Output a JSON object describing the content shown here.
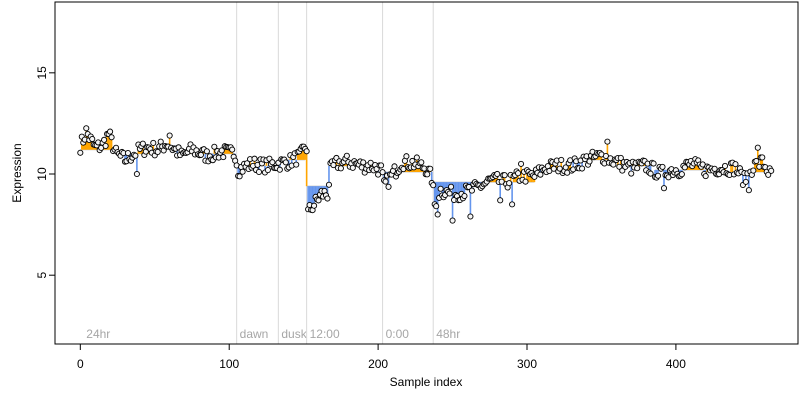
{
  "chart_data": {
    "type": "scatter",
    "title": "",
    "xlabel": "Sample index",
    "ylabel": "Expression",
    "xlim": [
      -17,
      482
    ],
    "ylim": [
      1.6,
      18.5
    ],
    "xticks": [
      0,
      100,
      200,
      300,
      400
    ],
    "yticks": [
      5,
      10,
      15
    ],
    "grid": false,
    "colors": {
      "up": "#ffa500",
      "down": "#6495ed",
      "marker_fill": "#f5f5f5",
      "marker_stroke": "#000000",
      "annotation_line": "#d9d9d9",
      "annotation_text": "#a6a6a6"
    },
    "annotations": [
      {
        "x": 2,
        "label": "24hr",
        "line": false
      },
      {
        "x": 105,
        "label": "dawn",
        "line": true
      },
      {
        "x": 133,
        "label": "dusk",
        "line": true
      },
      {
        "x": 152,
        "label": "12:00",
        "line": true
      },
      {
        "x": 203,
        "label": "0:00",
        "line": true
      },
      {
        "x": 237,
        "label": "48hr",
        "line": true
      }
    ],
    "segments": [
      {
        "x0": 0,
        "x1": 25,
        "level": 11.2
      },
      {
        "x0": 26,
        "x1": 51,
        "level": 11.0
      },
      {
        "x0": 52,
        "x1": 67,
        "level": 11.4
      },
      {
        "x0": 68,
        "x1": 104,
        "level": 11.0
      },
      {
        "x0": 105,
        "x1": 132,
        "level": 10.4
      },
      {
        "x0": 133,
        "x1": 151,
        "level": 10.7
      },
      {
        "x0": 152,
        "x1": 166,
        "level": 9.4
      },
      {
        "x0": 167,
        "x1": 202,
        "level": 10.4
      },
      {
        "x0": 203,
        "x1": 236,
        "level": 10.1
      },
      {
        "x0": 237,
        "x1": 305,
        "level": 9.6
      },
      {
        "x0": 306,
        "x1": 330,
        "level": 10.2
      },
      {
        "x0": 331,
        "x1": 360,
        "level": 10.7
      },
      {
        "x0": 361,
        "x1": 385,
        "level": 10.4
      },
      {
        "x0": 386,
        "x1": 420,
        "level": 10.2
      },
      {
        "x0": 421,
        "x1": 464,
        "level": 10.1
      }
    ],
    "anchors": [
      {
        "x": 0,
        "y": 11.4
      },
      {
        "x": 2,
        "y": 11.7
      },
      {
        "x": 4,
        "y": 12.1
      },
      {
        "x": 6,
        "y": 11.8
      },
      {
        "x": 10,
        "y": 11.3
      },
      {
        "x": 15,
        "y": 11.4
      },
      {
        "x": 19,
        "y": 12.0
      },
      {
        "x": 24,
        "y": 11.0
      },
      {
        "x": 30,
        "y": 10.7
      },
      {
        "x": 36,
        "y": 11.0
      },
      {
        "x": 40,
        "y": 11.2
      },
      {
        "x": 46,
        "y": 11.3
      },
      {
        "x": 52,
        "y": 11.2
      },
      {
        "x": 58,
        "y": 11.5
      },
      {
        "x": 62,
        "y": 11.3
      },
      {
        "x": 68,
        "y": 10.9
      },
      {
        "x": 75,
        "y": 11.2
      },
      {
        "x": 85,
        "y": 10.9
      },
      {
        "x": 95,
        "y": 11.1
      },
      {
        "x": 104,
        "y": 11.0
      },
      {
        "x": 106,
        "y": 10.2
      },
      {
        "x": 115,
        "y": 10.5
      },
      {
        "x": 125,
        "y": 10.4
      },
      {
        "x": 132,
        "y": 10.5
      },
      {
        "x": 140,
        "y": 10.6
      },
      {
        "x": 148,
        "y": 10.9
      },
      {
        "x": 151,
        "y": 11.3
      },
      {
        "x": 152,
        "y": 8.0
      },
      {
        "x": 155,
        "y": 8.3
      },
      {
        "x": 158,
        "y": 8.6
      },
      {
        "x": 162,
        "y": 9.0
      },
      {
        "x": 166,
        "y": 9.0
      },
      {
        "x": 168,
        "y": 10.2
      },
      {
        "x": 172,
        "y": 10.5
      },
      {
        "x": 180,
        "y": 10.6
      },
      {
        "x": 190,
        "y": 10.4
      },
      {
        "x": 196,
        "y": 10.4
      },
      {
        "x": 202,
        "y": 10.2
      },
      {
        "x": 204,
        "y": 9.4
      },
      {
        "x": 210,
        "y": 10.0
      },
      {
        "x": 216,
        "y": 10.6
      },
      {
        "x": 225,
        "y": 10.5
      },
      {
        "x": 232,
        "y": 10.3
      },
      {
        "x": 236,
        "y": 9.8
      },
      {
        "x": 238,
        "y": 8.5
      },
      {
        "x": 242,
        "y": 9.2
      },
      {
        "x": 250,
        "y": 9.0
      },
      {
        "x": 258,
        "y": 9.1
      },
      {
        "x": 266,
        "y": 9.3
      },
      {
        "x": 276,
        "y": 9.7
      },
      {
        "x": 286,
        "y": 9.6
      },
      {
        "x": 296,
        "y": 9.9
      },
      {
        "x": 305,
        "y": 9.9
      },
      {
        "x": 312,
        "y": 10.3
      },
      {
        "x": 320,
        "y": 10.4
      },
      {
        "x": 330,
        "y": 10.4
      },
      {
        "x": 340,
        "y": 10.7
      },
      {
        "x": 350,
        "y": 10.9
      },
      {
        "x": 360,
        "y": 10.6
      },
      {
        "x": 370,
        "y": 10.3
      },
      {
        "x": 380,
        "y": 10.4
      },
      {
        "x": 390,
        "y": 10.0
      },
      {
        "x": 396,
        "y": 10.2
      },
      {
        "x": 402,
        "y": 10.2
      },
      {
        "x": 410,
        "y": 10.5
      },
      {
        "x": 420,
        "y": 10.2
      },
      {
        "x": 430,
        "y": 10.3
      },
      {
        "x": 440,
        "y": 10.3
      },
      {
        "x": 446,
        "y": 9.7
      },
      {
        "x": 452,
        "y": 10.4
      },
      {
        "x": 458,
        "y": 10.6
      },
      {
        "x": 464,
        "y": 9.9
      }
    ],
    "n_points": 465,
    "noise_amplitude": 0.35,
    "outliers": [
      {
        "x": 38,
        "y": 10.0
      },
      {
        "x": 60,
        "y": 11.9
      },
      {
        "x": 240,
        "y": 8.0
      },
      {
        "x": 250,
        "y": 7.7
      },
      {
        "x": 262,
        "y": 7.9
      },
      {
        "x": 282,
        "y": 8.7
      },
      {
        "x": 290,
        "y": 8.5
      },
      {
        "x": 296,
        "y": 10.5
      },
      {
        "x": 354,
        "y": 11.6
      },
      {
        "x": 392,
        "y": 9.3
      },
      {
        "x": 449,
        "y": 9.2
      },
      {
        "x": 455,
        "y": 11.3
      }
    ]
  }
}
